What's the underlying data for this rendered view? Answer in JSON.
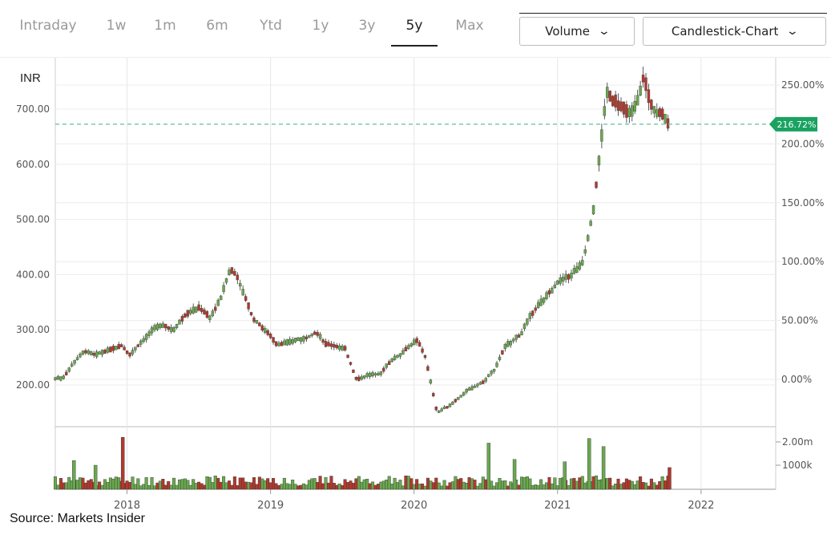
{
  "timeframe_tabs": [
    "Intraday",
    "1w",
    "1m",
    "6m",
    "Ytd",
    "1y",
    "3y",
    "5y",
    "Max"
  ],
  "active_tab": "5y",
  "volume_dropdown": "Volume",
  "charttype_dropdown": "Candlestick-Chart",
  "currency_label": "INR",
  "source": "Source: Markets Insider",
  "colors": {
    "up": "#6aa84f",
    "down": "#b03a2e",
    "current_line": "#6cc5a8",
    "badge": "#1aa260"
  },
  "chart_data": {
    "type": "candlestick",
    "x_labels": [
      "2018",
      "2019",
      "2020",
      "2021",
      "2022"
    ],
    "y_left_ticks": [
      "200.00",
      "300.00",
      "400.00",
      "500.00",
      "600.00",
      "700.00"
    ],
    "y_left_values": [
      200,
      300,
      400,
      500,
      600,
      700
    ],
    "y_right_ticks": [
      "0.00%",
      "50.00%",
      "100.00%",
      "150.00%",
      "200.00%",
      "250.00%"
    ],
    "y_right_values": [
      0,
      50,
      100,
      150,
      200,
      250
    ],
    "current_change_label": "216.72%",
    "current_change_value": 216.72,
    "volume_ticks": [
      "1000k",
      "2.00m"
    ],
    "volume_tick_values": [
      1000000,
      2000000
    ],
    "prices": [
      {
        "x": 2017.55,
        "v": 212
      },
      {
        "x": 2017.62,
        "v": 238
      },
      {
        "x": 2017.7,
        "v": 262
      },
      {
        "x": 2017.78,
        "v": 255
      },
      {
        "x": 2017.86,
        "v": 262
      },
      {
        "x": 2017.96,
        "v": 272
      },
      {
        "x": 2018.02,
        "v": 255
      },
      {
        "x": 2018.1,
        "v": 278
      },
      {
        "x": 2018.18,
        "v": 300
      },
      {
        "x": 2018.24,
        "v": 310
      },
      {
        "x": 2018.32,
        "v": 300
      },
      {
        "x": 2018.42,
        "v": 330
      },
      {
        "x": 2018.5,
        "v": 340
      },
      {
        "x": 2018.58,
        "v": 322
      },
      {
        "x": 2018.65,
        "v": 355
      },
      {
        "x": 2018.72,
        "v": 410
      },
      {
        "x": 2018.77,
        "v": 395
      },
      {
        "x": 2018.82,
        "v": 360
      },
      {
        "x": 2018.88,
        "v": 320
      },
      {
        "x": 2018.96,
        "v": 300
      },
      {
        "x": 2019.05,
        "v": 272
      },
      {
        "x": 2019.15,
        "v": 280
      },
      {
        "x": 2019.25,
        "v": 285
      },
      {
        "x": 2019.32,
        "v": 296
      },
      {
        "x": 2019.38,
        "v": 275
      },
      {
        "x": 2019.46,
        "v": 270
      },
      {
        "x": 2019.52,
        "v": 265
      },
      {
        "x": 2019.6,
        "v": 210
      },
      {
        "x": 2019.68,
        "v": 218
      },
      {
        "x": 2019.76,
        "v": 220
      },
      {
        "x": 2019.84,
        "v": 245
      },
      {
        "x": 2019.92,
        "v": 258
      },
      {
        "x": 2020.02,
        "v": 282
      },
      {
        "x": 2020.08,
        "v": 250
      },
      {
        "x": 2020.16,
        "v": 150
      },
      {
        "x": 2020.26,
        "v": 165
      },
      {
        "x": 2020.36,
        "v": 188
      },
      {
        "x": 2020.48,
        "v": 205
      },
      {
        "x": 2020.56,
        "v": 228
      },
      {
        "x": 2020.64,
        "v": 272
      },
      {
        "x": 2020.74,
        "v": 290
      },
      {
        "x": 2020.82,
        "v": 330
      },
      {
        "x": 2020.92,
        "v": 360
      },
      {
        "x": 2021.0,
        "v": 385
      },
      {
        "x": 2021.1,
        "v": 400
      },
      {
        "x": 2021.18,
        "v": 425
      },
      {
        "x": 2021.25,
        "v": 520
      },
      {
        "x": 2021.29,
        "v": 610
      },
      {
        "x": 2021.34,
        "v": 730
      },
      {
        "x": 2021.42,
        "v": 710
      },
      {
        "x": 2021.5,
        "v": 690
      },
      {
        "x": 2021.56,
        "v": 720
      },
      {
        "x": 2021.6,
        "v": 760
      },
      {
        "x": 2021.66,
        "v": 700
      },
      {
        "x": 2021.72,
        "v": 690
      },
      {
        "x": 2021.78,
        "v": 676
      }
    ],
    "volume_bars": [
      {
        "x": 2017.97,
        "v": 2.2,
        "up": false
      },
      {
        "x": 2021.22,
        "v": 2.15,
        "up": true
      },
      {
        "x": 2020.52,
        "v": 1.95,
        "up": true
      },
      {
        "x": 2021.32,
        "v": 1.8,
        "up": true
      },
      {
        "x": 2020.7,
        "v": 1.25,
        "up": true
      },
      {
        "x": 2017.63,
        "v": 1.2,
        "up": true
      },
      {
        "x": 2021.05,
        "v": 1.15,
        "up": true
      },
      {
        "x": 2017.78,
        "v": 1.0,
        "up": true
      },
      {
        "x": 2021.78,
        "v": 0.9,
        "up": false
      }
    ]
  }
}
